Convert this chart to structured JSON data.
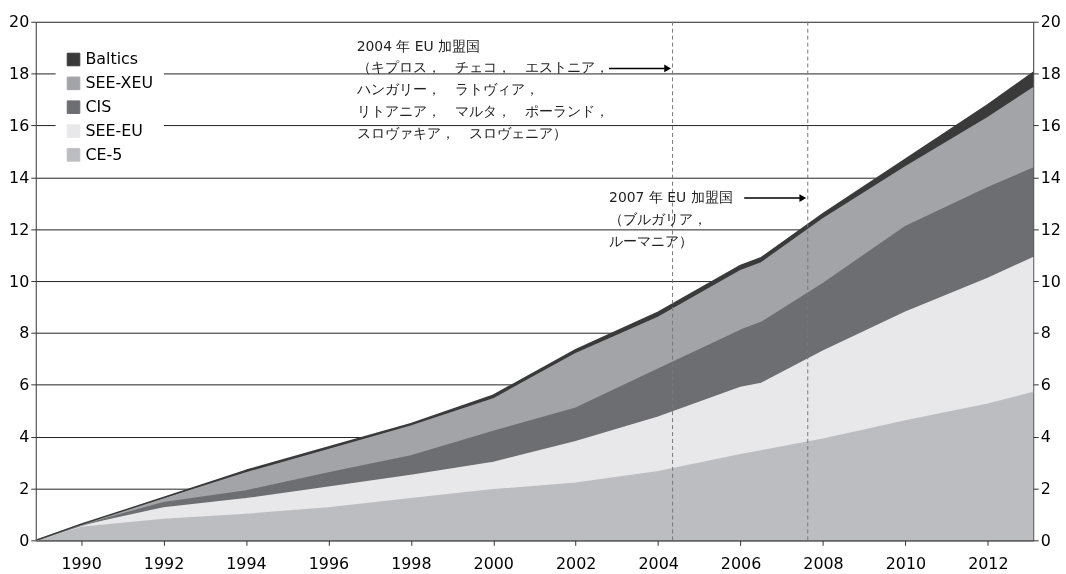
{
  "chart_data": {
    "type": "area",
    "stacked": true,
    "x": [
      1988.9,
      1990,
      1992,
      1994,
      1996,
      1998,
      2000,
      2002,
      2004,
      2006,
      2006.5,
      2008,
      2010,
      2012,
      2013.1
    ],
    "series": [
      {
        "name": "CE-5",
        "color": "#bcbdc1",
        "values": [
          0,
          0.5,
          0.8,
          1.0,
          1.25,
          1.6,
          1.95,
          2.2,
          2.65,
          3.3,
          3.45,
          3.9,
          4.6,
          5.25,
          5.7
        ]
      },
      {
        "name": "SEE-EU",
        "color": "#e8e8ea",
        "values": [
          0,
          0.05,
          0.45,
          0.6,
          0.8,
          0.9,
          1.05,
          1.6,
          2.1,
          2.6,
          2.6,
          3.4,
          4.2,
          4.85,
          5.2
        ]
      },
      {
        "name": "CIS",
        "color": "#6d6e72",
        "values": [
          0,
          0.03,
          0.2,
          0.3,
          0.55,
          0.75,
          1.2,
          1.3,
          1.85,
          2.2,
          2.35,
          2.6,
          3.3,
          3.5,
          3.45
        ]
      },
      {
        "name": "SEE-XEU",
        "color": "#a3a4a8",
        "values": [
          0,
          0.02,
          0.15,
          0.7,
          0.9,
          1.15,
          1.25,
          2.1,
          2.0,
          2.3,
          2.3,
          2.5,
          2.3,
          2.7,
          3.1
        ]
      },
      {
        "name": "Baltics",
        "color": "#3a3a3a",
        "values": [
          0,
          0.02,
          0.05,
          0.1,
          0.1,
          0.1,
          0.15,
          0.15,
          0.2,
          0.2,
          0.2,
          0.2,
          0.3,
          0.5,
          0.6
        ]
      }
    ],
    "xlim": [
      1988.9,
      2013.1
    ],
    "xticks": [
      1990,
      1992,
      1994,
      1996,
      1998,
      2000,
      2002,
      2004,
      2006,
      2008,
      2010,
      2012
    ],
    "ylim": [
      0,
      20
    ],
    "yticks": [
      0,
      2,
      4,
      6,
      8,
      10,
      12,
      14,
      16,
      18,
      20
    ],
    "y2lim": [
      0,
      20
    ],
    "y2ticks": [
      0,
      2,
      4,
      6,
      8,
      10,
      12,
      14,
      16,
      18,
      20
    ],
    "grid": "y",
    "legend": "top left",
    "ref_lines": [
      {
        "axis": "x",
        "value": 2004.35,
        "color": "#777777",
        "line_style": "dashed"
      },
      {
        "axis": "x",
        "value": 2007.63,
        "color": "#777777",
        "line_style": "dashed"
      }
    ],
    "annotations": [
      "2004 年 EU 加盟国",
      {
        "text": "（キプロス，　チェコ，　エストニア，",
        "x": 2004.35,
        "y": 18.2
      },
      "ハンガリー，　ラトヴィア，",
      "リトアニア，　マルタ，　ポーランド，",
      "スロヴァキア，　スロヴェニア）",
      {
        "text": "2007 年 EU 加盟国",
        "x": 2007.63,
        "y": 13.2
      },
      "（ブルガリア，",
      "ルーマニア）"
    ]
  }
}
